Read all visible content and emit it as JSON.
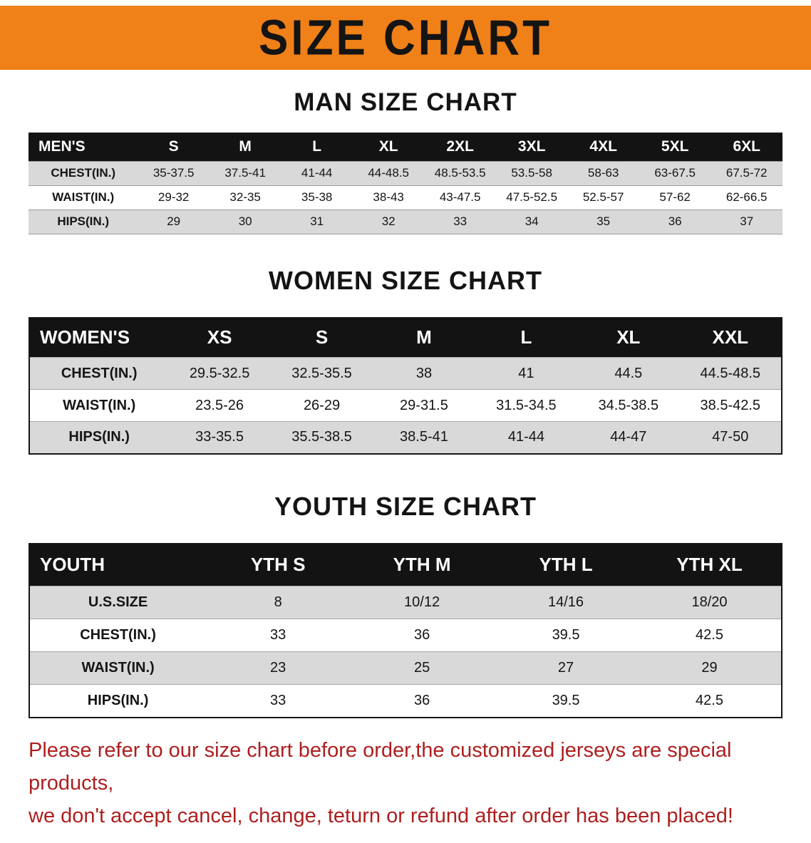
{
  "banner": {
    "title": "SIZE CHART"
  },
  "colors": {
    "banner_bg": "#f08018",
    "table_header_bg": "#131313",
    "stripe": "#d9d9d9",
    "notice_text": "#ae1f1f"
  },
  "chart_data": [
    {
      "type": "table",
      "title": "MAN SIZE CHART",
      "columns": [
        "MEN'S",
        "S",
        "M",
        "L",
        "XL",
        "2XL",
        "3XL",
        "4XL",
        "5XL",
        "6XL"
      ],
      "rows": [
        [
          "CHEST(IN.)",
          "35-37.5",
          "37.5-41",
          "41-44",
          "44-48.5",
          "48.5-53.5",
          "53.5-58",
          "58-63",
          "63-67.5",
          "67.5-72"
        ],
        [
          "WAIST(IN.)",
          "29-32",
          "32-35",
          "35-38",
          "38-43",
          "43-47.5",
          "47.5-52.5",
          "52.5-57",
          "57-62",
          "62-66.5"
        ],
        [
          "HIPS(IN.)",
          "29",
          "30",
          "31",
          "32",
          "33",
          "34",
          "35",
          "36",
          "37"
        ]
      ]
    },
    {
      "type": "table",
      "title": "WOMEN SIZE CHART",
      "columns": [
        "WOMEN'S",
        "XS",
        "S",
        "M",
        "L",
        "XL",
        "XXL"
      ],
      "rows": [
        [
          "CHEST(IN.)",
          "29.5-32.5",
          "32.5-35.5",
          "38",
          "41",
          "44.5",
          "44.5-48.5"
        ],
        [
          "WAIST(IN.)",
          "23.5-26",
          "26-29",
          "29-31.5",
          "31.5-34.5",
          "34.5-38.5",
          "38.5-42.5"
        ],
        [
          "HIPS(IN.)",
          "33-35.5",
          "35.5-38.5",
          "38.5-41",
          "41-44",
          "44-47",
          "47-50"
        ]
      ]
    },
    {
      "type": "table",
      "title": "YOUTH SIZE CHART",
      "columns": [
        "YOUTH",
        "YTH S",
        "YTH M",
        "YTH L",
        "YTH XL"
      ],
      "rows": [
        [
          "U.S.SIZE",
          "8",
          "10/12",
          "14/16",
          "18/20"
        ],
        [
          "CHEST(IN.)",
          "33",
          "36",
          "39.5",
          "42.5"
        ],
        [
          "WAIST(IN.)",
          "23",
          "25",
          "27",
          "29"
        ],
        [
          "HIPS(IN.)",
          "33",
          "36",
          "39.5",
          "42.5"
        ]
      ]
    }
  ],
  "notice": {
    "lines": [
      "Please refer to our size chart before order,the customized jerseys are special products,",
      "we don't accept cancel, change, teturn or refund after order has been placed!"
    ]
  }
}
